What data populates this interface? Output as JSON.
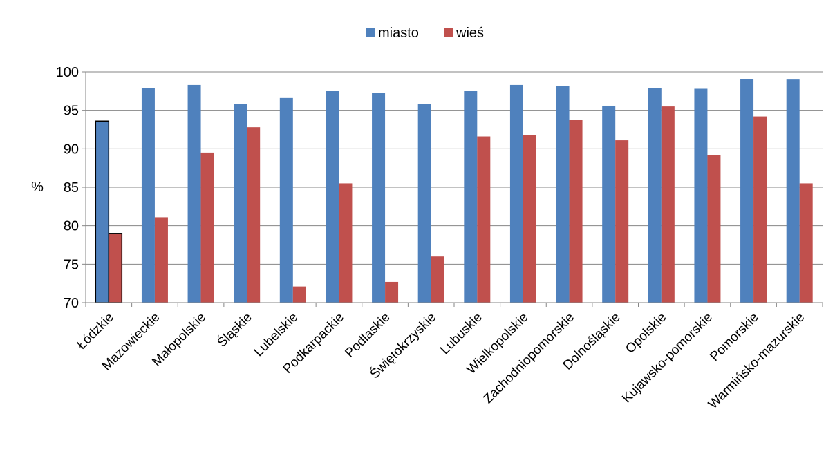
{
  "chart_data": {
    "type": "bar",
    "title": "",
    "xlabel": "",
    "ylabel": "%",
    "ylim": [
      70,
      100
    ],
    "yticks": [
      70,
      75,
      80,
      85,
      90,
      95,
      100
    ],
    "grid": true,
    "legend_position": "top-center",
    "categories": [
      "Łódzkie",
      "Mazowieckie",
      "Małopolskie",
      "Śląskie",
      "Lubelskie",
      "Podkarpackie",
      "Podlaskie",
      "Świętokrzyskie",
      "Lubuskie",
      "Wielkopolskie",
      "Zachodniopomorskie",
      "Dolnośląskie",
      "Opolskie",
      "Kujawsko-pomorskie",
      "Pomorskie",
      "Warmińsko-mazurskie"
    ],
    "series": [
      {
        "name": "miasto",
        "color": "#4f81bd",
        "values": [
          93.6,
          97.9,
          98.3,
          95.8,
          96.6,
          97.5,
          97.3,
          95.8,
          97.5,
          98.3,
          98.2,
          95.6,
          97.9,
          97.8,
          99.1,
          99.0
        ]
      },
      {
        "name": "wieś",
        "color": "#c0504d",
        "values": [
          79.0,
          81.1,
          89.5,
          92.8,
          72.1,
          85.5,
          72.7,
          76.0,
          91.6,
          91.8,
          93.8,
          91.1,
          95.5,
          89.2,
          94.2,
          85.5
        ]
      }
    ],
    "highlighted_category": "Łódzkie"
  }
}
